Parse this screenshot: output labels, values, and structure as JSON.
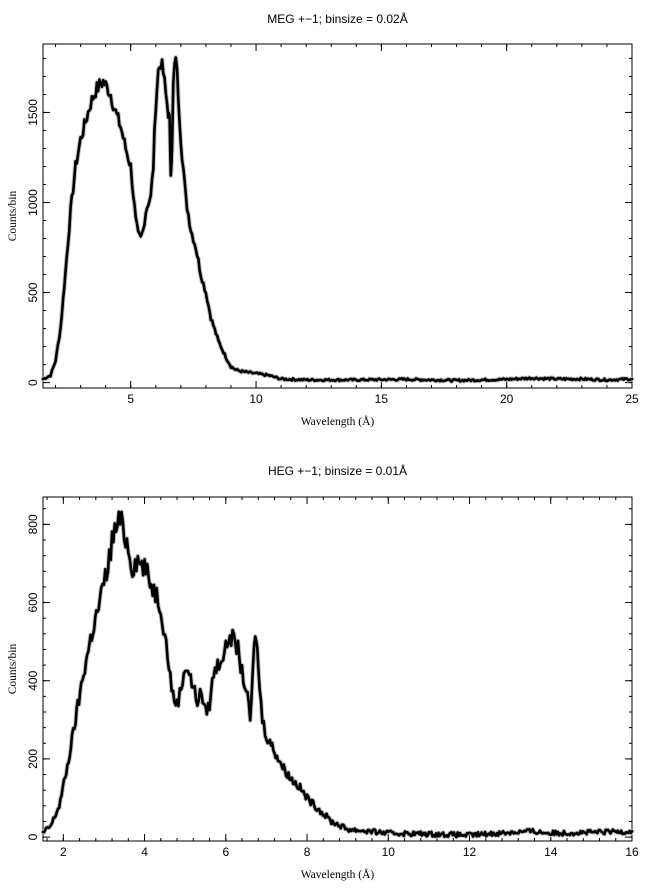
{
  "chart_data": [
    {
      "type": "line",
      "title": "MEG +−1; binsize = 0.02Å",
      "xlabel": "Wavelength (Å)",
      "ylabel": "Counts/bin",
      "xlim": [
        1.5,
        25
      ],
      "ylim": [
        -30,
        1880
      ],
      "xticks": [
        5,
        10,
        15,
        20,
        25
      ],
      "yticks": [
        0,
        500,
        1000,
        1500
      ],
      "grid": false,
      "series": [
        {
          "x": [
            1.5,
            1.8,
            2.0,
            2.2,
            2.4,
            2.6,
            2.8,
            3.0,
            3.2,
            3.4,
            3.6,
            3.8,
            3.9,
            4.0,
            4.1,
            4.2,
            4.4,
            4.6,
            4.8,
            5.0,
            5.1,
            5.2,
            5.3,
            5.4,
            5.5,
            5.6,
            5.7,
            5.8,
            5.9,
            6.0,
            6.1,
            6.2,
            6.3,
            6.4,
            6.5,
            6.55,
            6.6,
            6.65,
            6.7,
            6.8,
            6.9,
            7.0,
            7.2,
            7.4,
            7.6,
            7.8,
            8.0,
            8.2,
            8.5,
            8.8,
            9.0,
            9.2,
            9.5,
            10.0,
            10.5,
            11.0,
            12.0,
            14.0,
            16.0,
            18.0,
            20.0,
            21.0,
            22.0,
            23.0,
            24.0,
            25.0
          ],
          "y": [
            20,
            40,
            120,
            300,
            620,
            950,
            1200,
            1350,
            1450,
            1550,
            1620,
            1660,
            1670,
            1650,
            1630,
            1600,
            1500,
            1420,
            1300,
            1200,
            1050,
            900,
            820,
            800,
            850,
            950,
            1000,
            1030,
            1200,
            1550,
            1730,
            1780,
            1720,
            1600,
            1500,
            1450,
            1180,
            1300,
            1650,
            1830,
            1600,
            1350,
            1020,
            850,
            750,
            600,
            500,
            360,
            230,
            140,
            90,
            70,
            60,
            50,
            40,
            20,
            15,
            15,
            18,
            12,
            18,
            25,
            20,
            20,
            15,
            20
          ]
        }
      ]
    },
    {
      "type": "line",
      "title": "HEG +−1; binsize = 0.01Å",
      "xlabel": "Wavelength (Å)",
      "ylabel": "Counts/bin",
      "xlim": [
        1.5,
        16
      ],
      "ylim": [
        -10,
        870
      ],
      "xticks": [
        2,
        4,
        6,
        8,
        10,
        12,
        14,
        16
      ],
      "yticks": [
        0,
        200,
        400,
        600,
        800
      ],
      "grid": false,
      "series": [
        {
          "x": [
            1.5,
            1.7,
            1.9,
            2.1,
            2.3,
            2.5,
            2.7,
            2.9,
            3.0,
            3.1,
            3.2,
            3.3,
            3.4,
            3.5,
            3.6,
            3.7,
            3.8,
            3.9,
            4.0,
            4.1,
            4.2,
            4.3,
            4.4,
            4.5,
            4.6,
            4.7,
            4.8,
            4.9,
            5.0,
            5.1,
            5.2,
            5.3,
            5.4,
            5.5,
            5.6,
            5.7,
            5.8,
            5.9,
            6.0,
            6.1,
            6.2,
            6.3,
            6.4,
            6.5,
            6.6,
            6.7,
            6.75,
            6.8,
            6.9,
            7.0,
            7.2,
            7.4,
            7.6,
            7.8,
            8.0,
            8.3,
            8.6,
            9.0,
            9.5,
            10.0,
            11.0,
            12.0,
            13.0,
            13.5,
            14.0,
            15.0,
            16.0
          ],
          "y": [
            10,
            30,
            80,
            180,
            300,
            420,
            520,
            600,
            650,
            690,
            760,
            790,
            810,
            780,
            740,
            690,
            710,
            700,
            690,
            660,
            640,
            620,
            590,
            520,
            440,
            360,
            340,
            380,
            440,
            420,
            380,
            350,
            370,
            320,
            340,
            420,
            440,
            460,
            480,
            520,
            500,
            480,
            420,
            380,
            300,
            480,
            520,
            430,
            300,
            260,
            220,
            180,
            150,
            130,
            100,
            70,
            40,
            20,
            15,
            10,
            8,
            5,
            12,
            15,
            10,
            12,
            15
          ]
        }
      ]
    }
  ]
}
